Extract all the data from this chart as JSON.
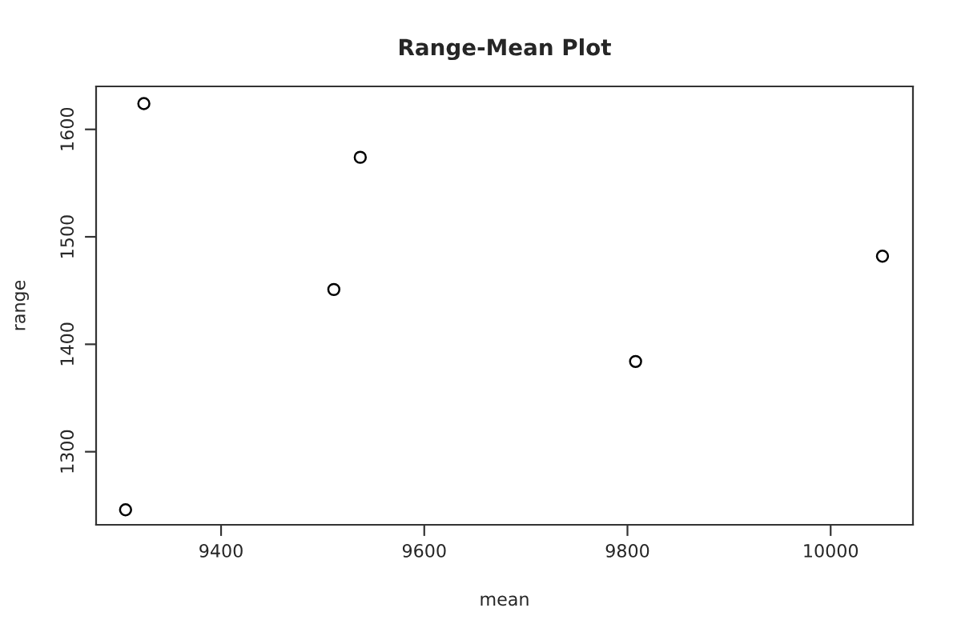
{
  "chart_data": {
    "type": "scatter",
    "title": "Range-Mean Plot",
    "xlabel": "mean",
    "ylabel": "range",
    "x": [
      9306,
      9324,
      9511,
      9537,
      9808,
      10051
    ],
    "series": [
      {
        "color": "#000000",
        "values": [
          1246,
          1624,
          1451,
          1574,
          1384,
          1482
        ]
      }
    ],
    "xlim": [
      9277,
      10081
    ],
    "ylim": [
      1232,
      1640
    ],
    "xticks": [
      9400,
      9600,
      9800,
      10000
    ],
    "yticks": [
      1300,
      1400,
      1500,
      1600
    ],
    "marker": "circle",
    "grid": false,
    "legend": false
  }
}
